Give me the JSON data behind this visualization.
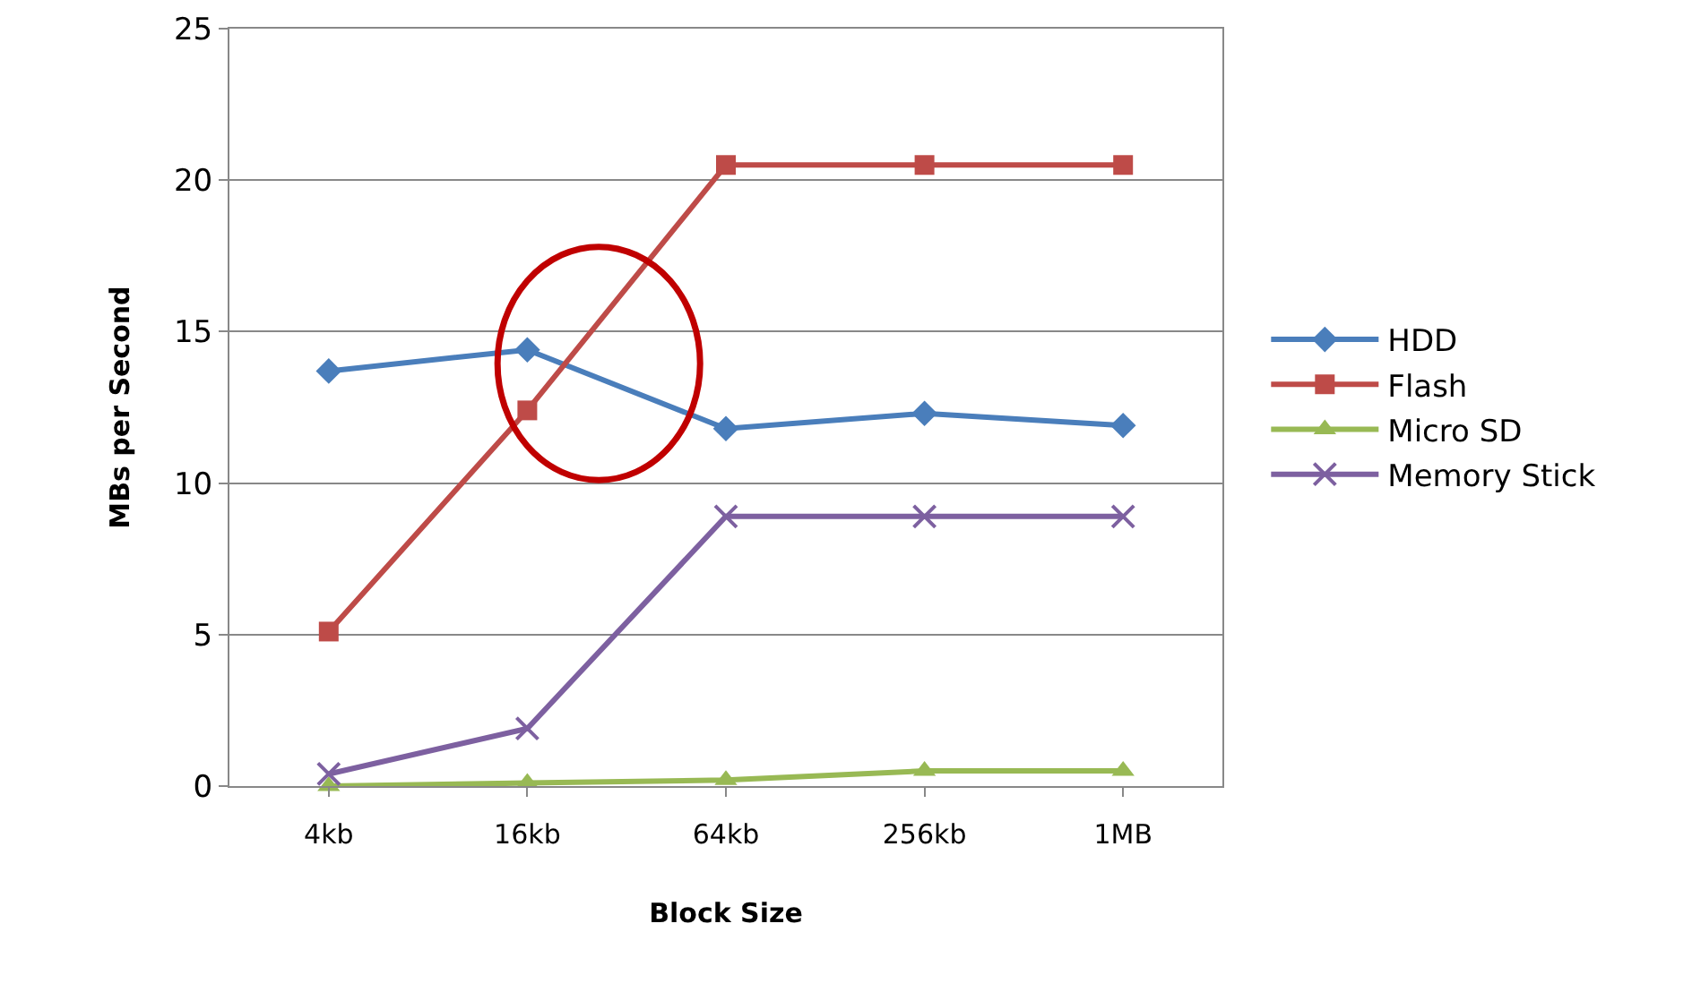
{
  "chart_data": {
    "type": "line",
    "xlabel": "Block Size",
    "ylabel": "MBs per Second",
    "categories": [
      "4kb",
      "16kb",
      "64kb",
      "256kb",
      "1MB"
    ],
    "series": [
      {
        "name": "HDD",
        "color": "#4a7ebb",
        "marker": "diamond",
        "values": [
          13.7,
          14.4,
          11.8,
          12.3,
          11.9
        ]
      },
      {
        "name": "Flash",
        "color": "#be4b48",
        "marker": "square",
        "values": [
          5.1,
          12.4,
          20.5,
          20.5,
          20.5
        ]
      },
      {
        "name": "Micro SD",
        "color": "#98b954",
        "marker": "triangle",
        "values": [
          0,
          0.1,
          0.2,
          0.5,
          0.5
        ]
      },
      {
        "name": "Memory Stick",
        "color": "#7d60a0",
        "marker": "cross",
        "values": [
          0.4,
          1.9,
          8.9,
          8.9,
          8.9
        ]
      }
    ],
    "ylim": [
      0,
      25
    ],
    "yticks": [
      0,
      5,
      10,
      15,
      20,
      25
    ],
    "grid": "y",
    "legend": "right"
  }
}
